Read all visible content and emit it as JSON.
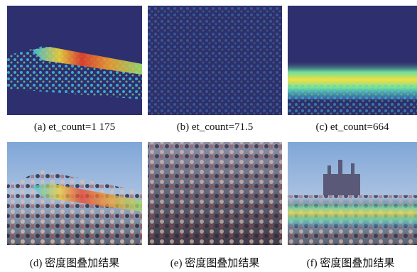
{
  "panels": [
    {
      "caption": "(a) et_count=1 175"
    },
    {
      "caption": "(b) et_count=71.5"
    },
    {
      "caption": "(c) et_count=664"
    },
    {
      "caption": "(d) 密度图叠加结果"
    },
    {
      "caption": "(e) 密度图叠加结果"
    },
    {
      "caption": "(f) 密度图叠加结果"
    }
  ]
}
